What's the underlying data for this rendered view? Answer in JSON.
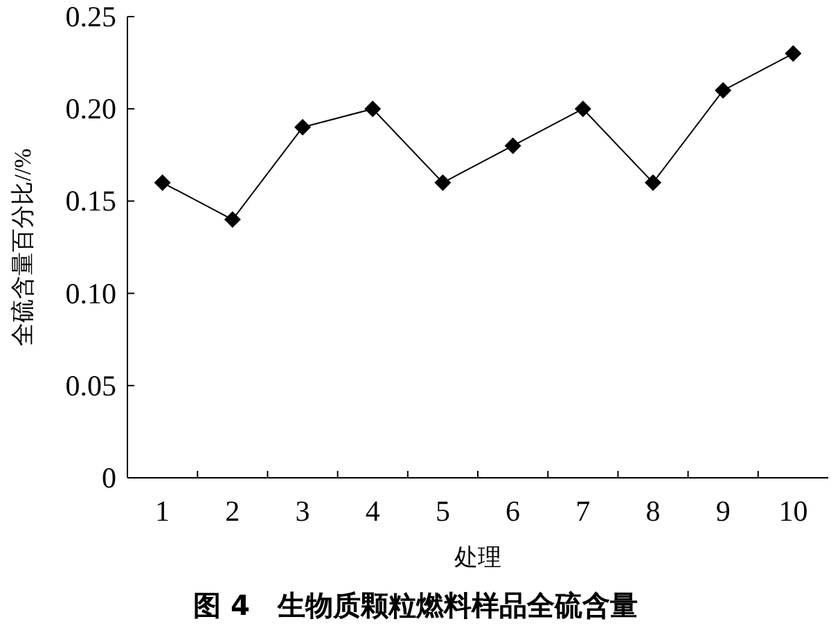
{
  "chart_data": {
    "type": "line",
    "title": "图 4　生物质颗粒燃料样品全硫含量",
    "xlabel": "处理",
    "ylabel": "全硫含量百分比//%",
    "categories": [
      "1",
      "2",
      "3",
      "4",
      "5",
      "6",
      "7",
      "8",
      "9",
      "10"
    ],
    "series": [
      {
        "color": "#000000",
        "values": [
          0.16,
          0.14,
          0.19,
          0.2,
          0.16,
          0.18,
          0.2,
          0.16,
          0.21,
          0.23
        ]
      }
    ],
    "ylim": [
      0,
      0.25
    ],
    "yticks": [
      {
        "value": 0,
        "label": "0"
      },
      {
        "value": 0.05,
        "label": "0.05"
      },
      {
        "value": 0.1,
        "label": "0.10"
      },
      {
        "value": 0.15,
        "label": "0.15"
      },
      {
        "value": 0.2,
        "label": "0.20"
      },
      {
        "value": 0.25,
        "label": "0.25"
      }
    ],
    "marker": "diamond",
    "line_style": "solid"
  }
}
